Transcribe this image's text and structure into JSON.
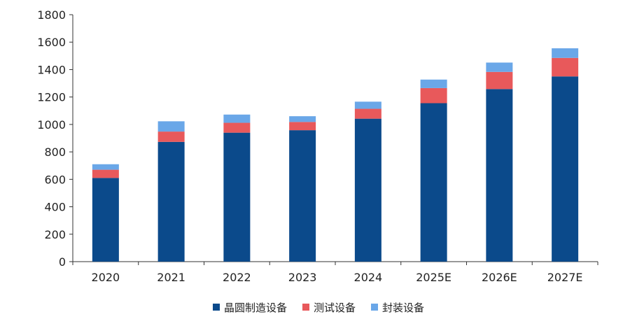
{
  "chart_data": {
    "type": "bar",
    "stacked": true,
    "categories": [
      "2020",
      "2021",
      "2022",
      "2023",
      "2024",
      "2025E",
      "2026E",
      "2027E"
    ],
    "series": [
      {
        "name": "晶圆制造设备",
        "color": "#0b4a8b",
        "values": [
          610,
          873,
          940,
          958,
          1042,
          1155,
          1258,
          1350
        ]
      },
      {
        "name": "测试设备",
        "color": "#e8595b",
        "values": [
          60,
          75,
          72,
          60,
          72,
          110,
          125,
          135
        ]
      },
      {
        "name": "封装设备",
        "color": "#6aa7e8",
        "values": [
          40,
          75,
          60,
          42,
          52,
          62,
          68,
          70
        ]
      }
    ],
    "yticks": [
      "0",
      "200",
      "400",
      "600",
      "800",
      "1000",
      "1200",
      "1400",
      "1600",
      "1800"
    ],
    "ylim": [
      0,
      1800
    ],
    "title": "",
    "xlabel": "",
    "ylabel": "",
    "legend_position": "bottom",
    "grid": false
  }
}
